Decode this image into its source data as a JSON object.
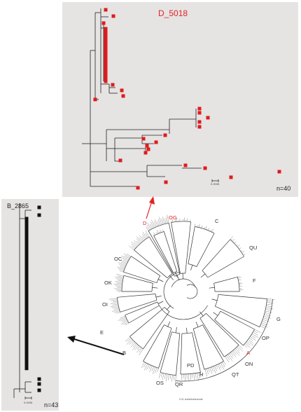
{
  "panel_d": {
    "title": "D_5018",
    "count": "n=40",
    "scale": "0.0005"
  },
  "panel_b": {
    "title": "B_2865",
    "count": "n=43",
    "scale": "0.0005"
  },
  "main_tree": {
    "footnote": "0.01 substitutions/site",
    "clade_labels": [
      "C",
      "QU",
      "F",
      "G",
      "OP",
      "A",
      "ON",
      "QT",
      "H",
      "PD",
      "QR",
      "OS",
      "B",
      "E",
      "OI",
      "OK",
      "OC",
      "OG",
      "D"
    ],
    "highlighted_labels": [
      "OG",
      "D",
      "A"
    ]
  },
  "colors": {
    "highlight": "#e32222",
    "panel_bg": "#e6e3e3",
    "marker_b": "#111111",
    "marker_d": "#e01b1b"
  },
  "icons": {
    "d_arrow": "arrow-up-red",
    "b_arrow": "arrow-left-black"
  }
}
